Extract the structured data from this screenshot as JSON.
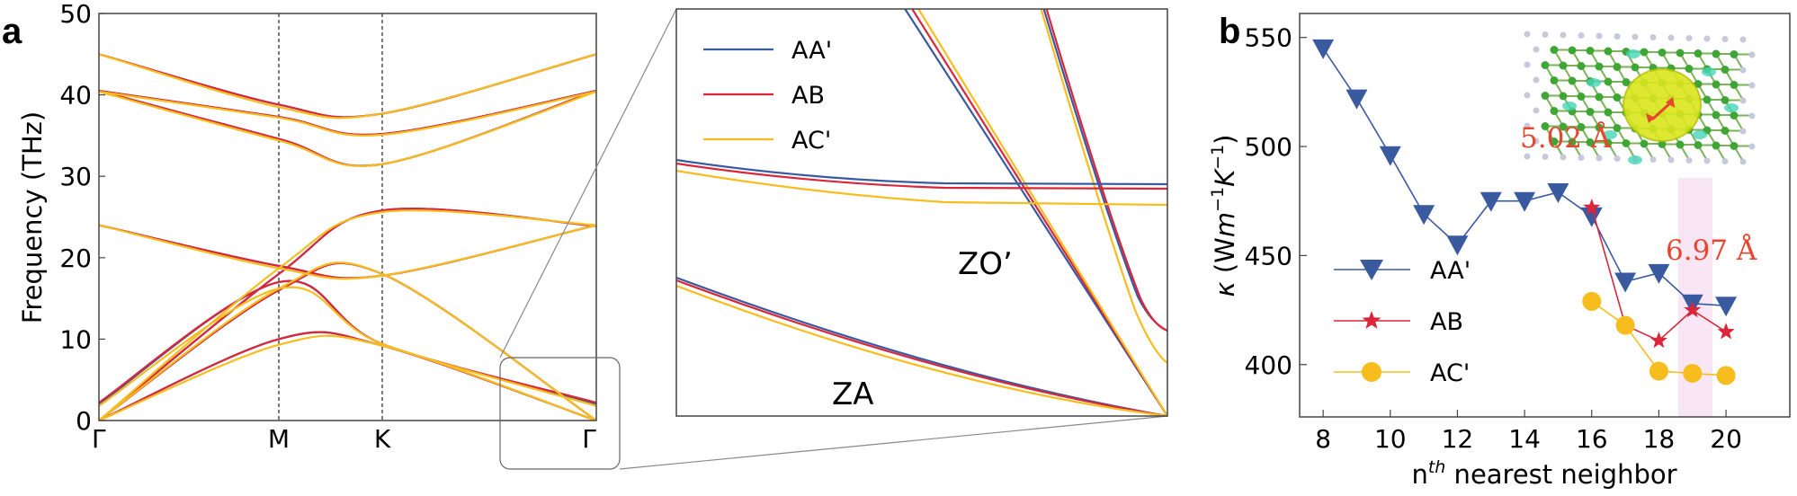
{
  "colors": {
    "AA'": "#3a5aa0",
    "AB": "#d9263b",
    "AC'": "#f7bd1e",
    "highlight": "#f8e6f4",
    "annot": "#e8452e"
  },
  "chart_data": [
    {
      "panel": "a",
      "type": "line",
      "ylabel": "Frequency (THz)",
      "ylim": [
        0,
        50
      ],
      "yticks": [
        "0",
        "10",
        "20",
        "30",
        "40",
        "50"
      ],
      "xticks": [
        "Γ",
        "M",
        "K",
        "Γ"
      ],
      "x": [
        0,
        1,
        2,
        3
      ],
      "series": [
        {
          "name": "AA'",
          "branches": [
            [
              0,
              10,
              9.2,
              0
            ],
            [
              2,
              17,
              9.4,
              2
            ],
            [
              0,
              16,
              18,
              0
            ],
            [
              24,
              19,
              17.8,
              24
            ],
            [
              0,
              18,
              25.8,
              23.9
            ],
            [
              40.5,
              34.6,
              31.5,
              40.5
            ],
            [
              40.5,
              37.3,
              35.2,
              40.5
            ],
            [
              45,
              38.8,
              37.7,
              45
            ]
          ]
        },
        {
          "name": "AB",
          "branches": [
            [
              0,
              10,
              9.2,
              0
            ],
            [
              2.2,
              17,
              9.4,
              2.2
            ],
            [
              0,
              16,
              18,
              0
            ],
            [
              24,
              19,
              17.8,
              24
            ],
            [
              0,
              18,
              25.8,
              23.9
            ],
            [
              40.5,
              34.6,
              31.5,
              40.5
            ],
            [
              40.5,
              37.3,
              35.2,
              40.5
            ],
            [
              45,
              38.8,
              37.7,
              45
            ]
          ]
        },
        {
          "name": "AC'",
          "branches": [
            [
              0,
              9.3,
              9.2,
              0
            ],
            [
              1.8,
              16.2,
              9.4,
              1.8
            ],
            [
              0,
              16.2,
              18,
              0
            ],
            [
              24,
              18.7,
              17.8,
              24
            ],
            [
              0,
              18.7,
              25.6,
              24
            ],
            [
              40.4,
              34.4,
              31.5,
              40.4
            ],
            [
              40.4,
              37.2,
              35.1,
              40.4
            ],
            [
              45,
              38.5,
              37.7,
              45
            ]
          ]
        }
      ],
      "inset_labels": [
        "ZA",
        "ZO’"
      ]
    },
    {
      "panel": "b",
      "type": "line",
      "xlabel": "nth nearest neighbor",
      "ylabel": "κ (Wm−1K−1)",
      "xlim": [
        7.3,
        21.9
      ],
      "ylim": [
        376,
        561
      ],
      "xticks": [
        "8",
        "10",
        "12",
        "14",
        "16",
        "18",
        "20"
      ],
      "yticks": [
        "400",
        "450",
        "500",
        "550"
      ],
      "series": [
        {
          "name": "AA'",
          "x": [
            8,
            9,
            10,
            11,
            12,
            13,
            14,
            15,
            16,
            17,
            18,
            19,
            20
          ],
          "y": [
            545,
            522,
            496,
            469,
            455,
            475,
            475,
            479,
            468,
            438,
            442,
            428,
            427
          ]
        },
        {
          "name": "AB",
          "x": [
            16,
            17,
            18,
            19,
            20
          ],
          "y": [
            472,
            418,
            411,
            425,
            415
          ]
        },
        {
          "name": "AC'",
          "x": [
            16,
            17,
            18,
            19,
            20
          ],
          "y": [
            429,
            418,
            397,
            396,
            395
          ]
        }
      ],
      "annotations": [
        "5.02 Å",
        "6.97 Å"
      ]
    }
  ]
}
